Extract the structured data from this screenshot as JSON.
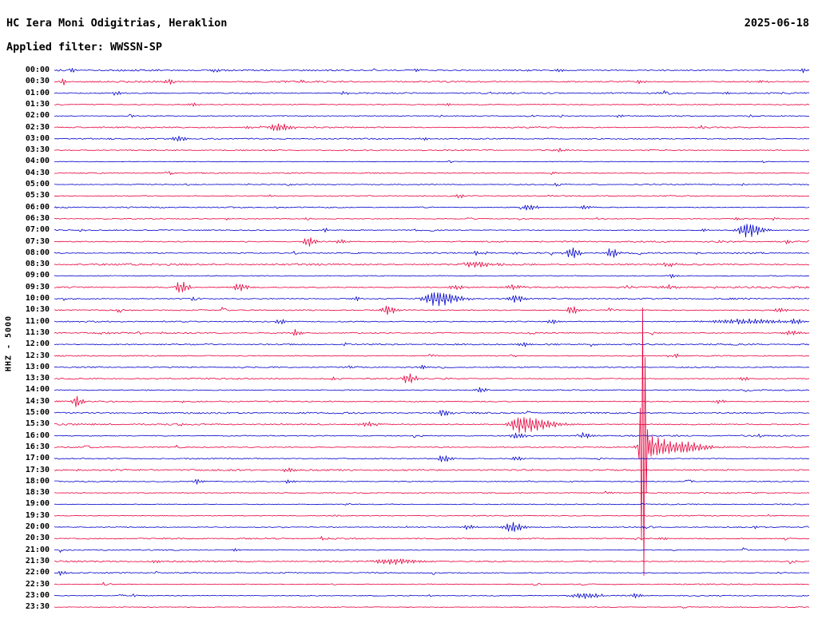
{
  "colors": {
    "blue": "#0000cc",
    "red": "#e8003c",
    "text": "#000000",
    "background": "#ffffff"
  },
  "chart_data": {
    "type": "line",
    "kind": "helicorder-seismogram",
    "title": "HC Iera Moni Odigitrias, Heraklion",
    "date": "2025-06-18",
    "filter_label": "Applied filter: WWSSN-SP",
    "ylabel": "HHZ - 5000",
    "row_interval_minutes": 30,
    "legend": "none",
    "grid": "off",
    "rows": [
      {
        "t": "00:00",
        "c": "blue",
        "n": 1.2,
        "e": [
          [
            90,
            3,
            3,
            5
          ],
          [
            270,
            2.5,
            3,
            6
          ],
          [
            520,
            2,
            3,
            5
          ],
          [
            700,
            2,
            3,
            4
          ],
          [
            1005,
            2.5,
            2,
            3
          ]
        ]
      },
      {
        "t": "00:30",
        "c": "red",
        "n": 1.1,
        "e": [
          [
            78,
            4,
            2,
            4
          ],
          [
            210,
            2.5,
            4,
            8
          ],
          [
            375,
            2.5,
            3,
            5
          ],
          [
            800,
            2,
            3,
            5
          ]
        ]
      },
      {
        "t": "01:00",
        "c": "blue",
        "n": 1.0,
        "e": [
          [
            145,
            3,
            3,
            5
          ],
          [
            430,
            2,
            3,
            5
          ],
          [
            910,
            2,
            3,
            4
          ]
        ]
      },
      {
        "t": "01:30",
        "c": "red",
        "n": 1.0,
        "e": [
          [
            240,
            2,
            3,
            6
          ],
          [
            560,
            2,
            3,
            5
          ]
        ]
      },
      {
        "t": "02:00",
        "c": "blue",
        "n": 0.9,
        "e": [
          [
            775,
            2.5,
            2,
            4
          ]
        ]
      },
      {
        "t": "02:30",
        "c": "red",
        "n": 0.9,
        "e": [
          [
            345,
            5,
            6,
            14
          ],
          [
            310,
            2,
            3,
            4
          ]
        ]
      },
      {
        "t": "03:00",
        "c": "blue",
        "n": 0.9,
        "e": [
          [
            222,
            3.5,
            5,
            9
          ],
          [
            530,
            2,
            4,
            6
          ]
        ]
      },
      {
        "t": "03:30",
        "c": "red",
        "n": 0.8,
        "e": [
          [
            700,
            2,
            4,
            8
          ]
        ]
      },
      {
        "t": "04:00",
        "c": "blue",
        "n": 0.7,
        "e": []
      },
      {
        "t": "04:30",
        "c": "red",
        "n": 0.8,
        "e": [
          [
            212,
            2.5,
            2,
            4
          ]
        ]
      },
      {
        "t": "05:00",
        "c": "blue",
        "n": 0.7,
        "e": []
      },
      {
        "t": "05:30",
        "c": "red",
        "n": 0.8,
        "e": [
          [
            575,
            3,
            3,
            5
          ]
        ]
      },
      {
        "t": "06:00",
        "c": "blue",
        "n": 0.9,
        "e": [
          [
            660,
            3.5,
            5,
            9
          ],
          [
            732,
            2.5,
            4,
            7
          ]
        ]
      },
      {
        "t": "06:30",
        "c": "red",
        "n": 0.8,
        "e": [
          [
            920,
            2,
            3,
            6
          ]
        ]
      },
      {
        "t": "07:00",
        "c": "blue",
        "n": 1.0,
        "e": [
          [
            935,
            9,
            8,
            14
          ],
          [
            405,
            3,
            2,
            4
          ],
          [
            880,
            2,
            3,
            5
          ]
        ]
      },
      {
        "t": "07:30",
        "c": "red",
        "n": 1.0,
        "e": [
          [
            385,
            6,
            4,
            7
          ],
          [
            425,
            3,
            3,
            6
          ],
          [
            985,
            2.5,
            3,
            5
          ]
        ]
      },
      {
        "t": "08:00",
        "c": "blue",
        "n": 1.0,
        "e": [
          [
            715,
            7,
            5,
            8
          ],
          [
            765,
            6,
            4,
            7
          ],
          [
            595,
            2.5,
            3,
            5
          ]
        ]
      },
      {
        "t": "08:30",
        "c": "red",
        "n": 1.3,
        "e": [
          [
            595,
            4,
            8,
            16
          ],
          [
            835,
            2.5,
            4,
            8
          ]
        ]
      },
      {
        "t": "09:00",
        "c": "blue",
        "n": 1.0,
        "e": [
          [
            840,
            2.5,
            3,
            6
          ]
        ]
      },
      {
        "t": "09:30",
        "c": "red",
        "n": 1.3,
        "e": [
          [
            225,
            8,
            4,
            8
          ],
          [
            298,
            4.5,
            5,
            10
          ],
          [
            570,
            3,
            6,
            10
          ],
          [
            640,
            3,
            5,
            9
          ],
          [
            835,
            2.5,
            4,
            7
          ]
        ]
      },
      {
        "t": "10:00",
        "c": "blue",
        "n": 1.1,
        "e": [
          [
            545,
            9,
            10,
            22
          ],
          [
            645,
            5,
            6,
            9
          ],
          [
            445,
            2.5,
            3,
            5
          ]
        ]
      },
      {
        "t": "10:30",
        "c": "red",
        "n": 1.2,
        "e": [
          [
            485,
            6,
            5,
            8
          ],
          [
            715,
            5,
            4,
            7
          ],
          [
            975,
            3,
            4,
            8
          ]
        ]
      },
      {
        "t": "11:00",
        "c": "blue",
        "n": 1.1,
        "e": [
          [
            350,
            3,
            4,
            7
          ],
          [
            690,
            3,
            4,
            7
          ],
          [
            930,
            3,
            30,
            40
          ],
          [
            995,
            3,
            5,
            8
          ]
        ]
      },
      {
        "t": "11:30",
        "c": "red",
        "n": 1.0,
        "e": [
          [
            370,
            4,
            3,
            5
          ],
          [
            990,
            3,
            6,
            10
          ]
        ]
      },
      {
        "t": "12:00",
        "c": "blue",
        "n": 1.0,
        "e": [
          [
            655,
            2.5,
            4,
            7
          ]
        ]
      },
      {
        "t": "12:30",
        "c": "red",
        "n": 1.0,
        "e": [
          [
            845,
            2.5,
            3,
            6
          ]
        ]
      },
      {
        "t": "13:00",
        "c": "blue",
        "n": 0.9,
        "e": [
          [
            530,
            2.5,
            4,
            6
          ]
        ]
      },
      {
        "t": "13:30",
        "c": "red",
        "n": 1.0,
        "e": [
          [
            510,
            6,
            5,
            9
          ],
          [
            930,
            2.5,
            3,
            6
          ]
        ]
      },
      {
        "t": "14:00",
        "c": "blue",
        "n": 1.0,
        "e": [
          [
            600,
            3,
            4,
            7
          ]
        ]
      },
      {
        "t": "14:30",
        "c": "red",
        "n": 1.0,
        "e": [
          [
            95,
            7,
            3,
            6
          ],
          [
            900,
            2.5,
            4,
            7
          ]
        ]
      },
      {
        "t": "15:00",
        "c": "blue",
        "n": 1.1,
        "e": [
          [
            555,
            4,
            5,
            8
          ]
        ]
      },
      {
        "t": "15:30",
        "c": "red",
        "n": 1.2,
        "e": [
          [
            650,
            10,
            8,
            30
          ],
          [
            460,
            3,
            6,
            12
          ]
        ]
      },
      {
        "t": "16:00",
        "c": "blue",
        "n": 1.1,
        "e": [
          [
            645,
            4,
            5,
            9
          ],
          [
            730,
            3.5,
            4,
            7
          ]
        ]
      },
      {
        "t": "16:30",
        "c": "red",
        "n": 1.1,
        "e": [
          [
            805,
            175,
            2,
            3
          ],
          [
            805,
            14,
            5,
            30
          ],
          [
            860,
            5,
            8,
            20
          ]
        ]
      },
      {
        "t": "17:00",
        "c": "blue",
        "n": 1.0,
        "e": [
          [
            555,
            4.5,
            5,
            8
          ],
          [
            645,
            2.5,
            4,
            7
          ]
        ]
      },
      {
        "t": "17:30",
        "c": "red",
        "n": 1.2,
        "e": [
          [
            360,
            2.5,
            4,
            8
          ]
        ]
      },
      {
        "t": "18:00",
        "c": "blue",
        "n": 1.0,
        "e": [
          [
            245,
            3,
            3,
            6
          ],
          [
            360,
            2.5,
            3,
            6
          ]
        ]
      },
      {
        "t": "18:30",
        "c": "red",
        "n": 0.9,
        "e": []
      },
      {
        "t": "19:00",
        "c": "blue",
        "n": 0.8,
        "e": []
      },
      {
        "t": "19:30",
        "c": "red",
        "n": 0.8,
        "e": []
      },
      {
        "t": "20:00",
        "c": "blue",
        "n": 0.9,
        "e": [
          [
            640,
            6,
            7,
            12
          ],
          [
            585,
            3,
            4,
            7
          ]
        ]
      },
      {
        "t": "20:30",
        "c": "red",
        "n": 0.9,
        "e": [
          [
            830,
            2,
            3,
            5
          ]
        ]
      },
      {
        "t": "21:00",
        "c": "blue",
        "n": 0.8,
        "e": [
          [
            295,
            2,
            3,
            5
          ]
        ]
      },
      {
        "t": "21:30",
        "c": "red",
        "n": 1.0,
        "e": [
          [
            490,
            3.5,
            15,
            25
          ],
          [
            195,
            2,
            3,
            5
          ]
        ]
      },
      {
        "t": "22:00",
        "c": "blue",
        "n": 0.9,
        "e": [
          [
            75,
            3,
            2,
            6
          ]
        ]
      },
      {
        "t": "22:30",
        "c": "red",
        "n": 0.8,
        "e": []
      },
      {
        "t": "23:00",
        "c": "blue",
        "n": 0.9,
        "e": [
          [
            730,
            3.5,
            10,
            18
          ],
          [
            795,
            2.5,
            4,
            7
          ]
        ]
      },
      {
        "t": "23:30",
        "c": "red",
        "n": 0.7,
        "e": []
      }
    ]
  }
}
